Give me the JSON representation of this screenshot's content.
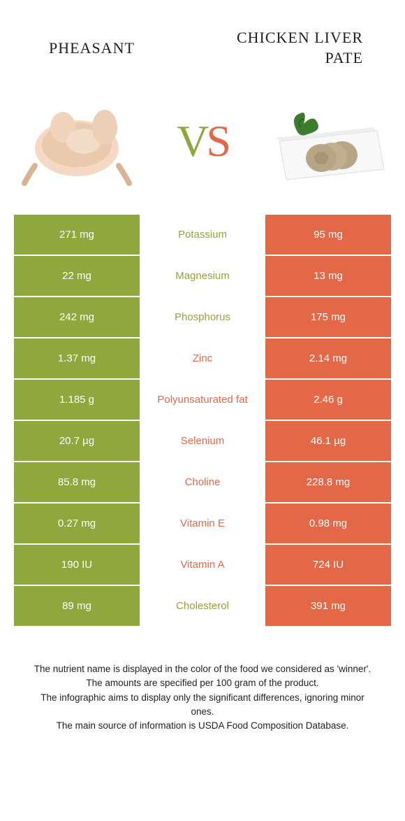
{
  "header": {
    "left_title": "PHEASANT",
    "right_title": "CHICKEN LIVER PATE",
    "vs_v": "V",
    "vs_s": "S"
  },
  "colors": {
    "green": "#8fa83d",
    "orange": "#e36848",
    "white": "#ffffff",
    "text": "#222222"
  },
  "rows": [
    {
      "left": "271 mg",
      "name": "Potassium",
      "right": "95 mg",
      "winner": "green"
    },
    {
      "left": "22 mg",
      "name": "Magnesium",
      "right": "13 mg",
      "winner": "green"
    },
    {
      "left": "242 mg",
      "name": "Phosphorus",
      "right": "175 mg",
      "winner": "green"
    },
    {
      "left": "1.37 mg",
      "name": "Zinc",
      "right": "2.14 mg",
      "winner": "orange"
    },
    {
      "left": "1.185 g",
      "name": "Polyunsaturated fat",
      "right": "2.46 g",
      "winner": "orange"
    },
    {
      "left": "20.7 µg",
      "name": "Selenium",
      "right": "46.1 µg",
      "winner": "orange"
    },
    {
      "left": "85.8 mg",
      "name": "Choline",
      "right": "228.8 mg",
      "winner": "orange"
    },
    {
      "left": "0.27 mg",
      "name": "Vitamin E",
      "right": "0.98 mg",
      "winner": "orange"
    },
    {
      "left": "190 IU",
      "name": "Vitamin A",
      "right": "724 IU",
      "winner": "orange"
    },
    {
      "left": "89 mg",
      "name": "Cholesterol",
      "right": "391 mg",
      "winner": "green"
    }
  ],
  "footer": {
    "line1": "The nutrient name is displayed in the color of the food we considered as 'winner'.",
    "line2": "The amounts are specified per 100 gram of the product.",
    "line3": "The infographic aims to display only the significant differences, ignoring minor ones.",
    "line4": "The main source of information is USDA Food Composition Database."
  }
}
